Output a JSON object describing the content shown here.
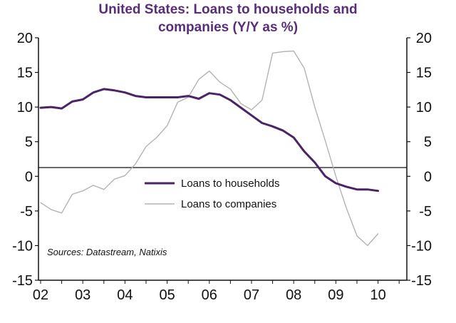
{
  "chart_data": {
    "type": "line",
    "title_lines": [
      "United States: Loans to households and",
      "companies (Y/Y as %)"
    ],
    "source": "Sources: Datastream, Natixis",
    "x_ticks": [
      "02",
      "03",
      "04",
      "05",
      "06",
      "07",
      "08",
      "09",
      "10"
    ],
    "x_range": [
      2002,
      2010.8
    ],
    "y_ticks_left": [
      "20",
      "15",
      "10",
      "5",
      "0",
      "-5",
      "-10",
      "-15"
    ],
    "y_ticks_right": [
      "20",
      "15",
      "10",
      "5",
      "0",
      "-5",
      "-10",
      "-15"
    ],
    "ylim": [
      -15,
      20
    ],
    "legend_position": "center",
    "series": [
      {
        "name": "Loans to households",
        "color": "#4b2468",
        "width": 3,
        "points": [
          [
            2002.0,
            9.9
          ],
          [
            2002.25,
            10.0
          ],
          [
            2002.5,
            9.8
          ],
          [
            2002.75,
            10.8
          ],
          [
            2003.0,
            11.1
          ],
          [
            2003.25,
            12.1
          ],
          [
            2003.5,
            12.6
          ],
          [
            2003.75,
            12.4
          ],
          [
            2004.0,
            12.1
          ],
          [
            2004.25,
            11.6
          ],
          [
            2004.5,
            11.4
          ],
          [
            2004.75,
            11.4
          ],
          [
            2005.0,
            11.4
          ],
          [
            2005.25,
            11.4
          ],
          [
            2005.5,
            11.6
          ],
          [
            2005.75,
            11.2
          ],
          [
            2006.0,
            12.0
          ],
          [
            2006.25,
            11.8
          ],
          [
            2006.5,
            11.0
          ],
          [
            2006.75,
            9.9
          ],
          [
            2007.0,
            8.8
          ],
          [
            2007.25,
            7.7
          ],
          [
            2007.5,
            7.2
          ],
          [
            2007.75,
            6.6
          ],
          [
            2008.0,
            5.6
          ],
          [
            2008.25,
            3.6
          ],
          [
            2008.5,
            2.0
          ],
          [
            2008.75,
            0.0
          ],
          [
            2009.0,
            -1.0
          ],
          [
            2009.25,
            -1.5
          ],
          [
            2009.5,
            -1.9
          ],
          [
            2009.75,
            -1.9
          ],
          [
            2010.0,
            -2.1
          ]
        ]
      },
      {
        "name": "Loans to companies",
        "color": "#b3b3b3",
        "width": 1.4,
        "points": [
          [
            2002.0,
            -3.8
          ],
          [
            2002.25,
            -4.8
          ],
          [
            2002.5,
            -5.3
          ],
          [
            2002.75,
            -2.6
          ],
          [
            2003.0,
            -2.1
          ],
          [
            2003.25,
            -1.3
          ],
          [
            2003.5,
            -1.9
          ],
          [
            2003.75,
            -0.4
          ],
          [
            2004.0,
            0.1
          ],
          [
            2004.25,
            1.8
          ],
          [
            2004.5,
            4.3
          ],
          [
            2004.75,
            5.6
          ],
          [
            2005.0,
            7.3
          ],
          [
            2005.25,
            10.7
          ],
          [
            2005.5,
            11.4
          ],
          [
            2005.75,
            14.0
          ],
          [
            2006.0,
            15.2
          ],
          [
            2006.25,
            13.6
          ],
          [
            2006.5,
            12.6
          ],
          [
            2006.75,
            10.5
          ],
          [
            2007.0,
            9.6
          ],
          [
            2007.25,
            11.0
          ],
          [
            2007.5,
            17.8
          ],
          [
            2007.75,
            18.0
          ],
          [
            2008.0,
            18.1
          ],
          [
            2008.25,
            15.6
          ],
          [
            2008.5,
            10.0
          ],
          [
            2008.75,
            5.1
          ],
          [
            2009.0,
            0.0
          ],
          [
            2009.25,
            -4.6
          ],
          [
            2009.5,
            -8.6
          ],
          [
            2009.75,
            -10.0
          ],
          [
            2010.0,
            -8.3
          ]
        ]
      }
    ]
  }
}
